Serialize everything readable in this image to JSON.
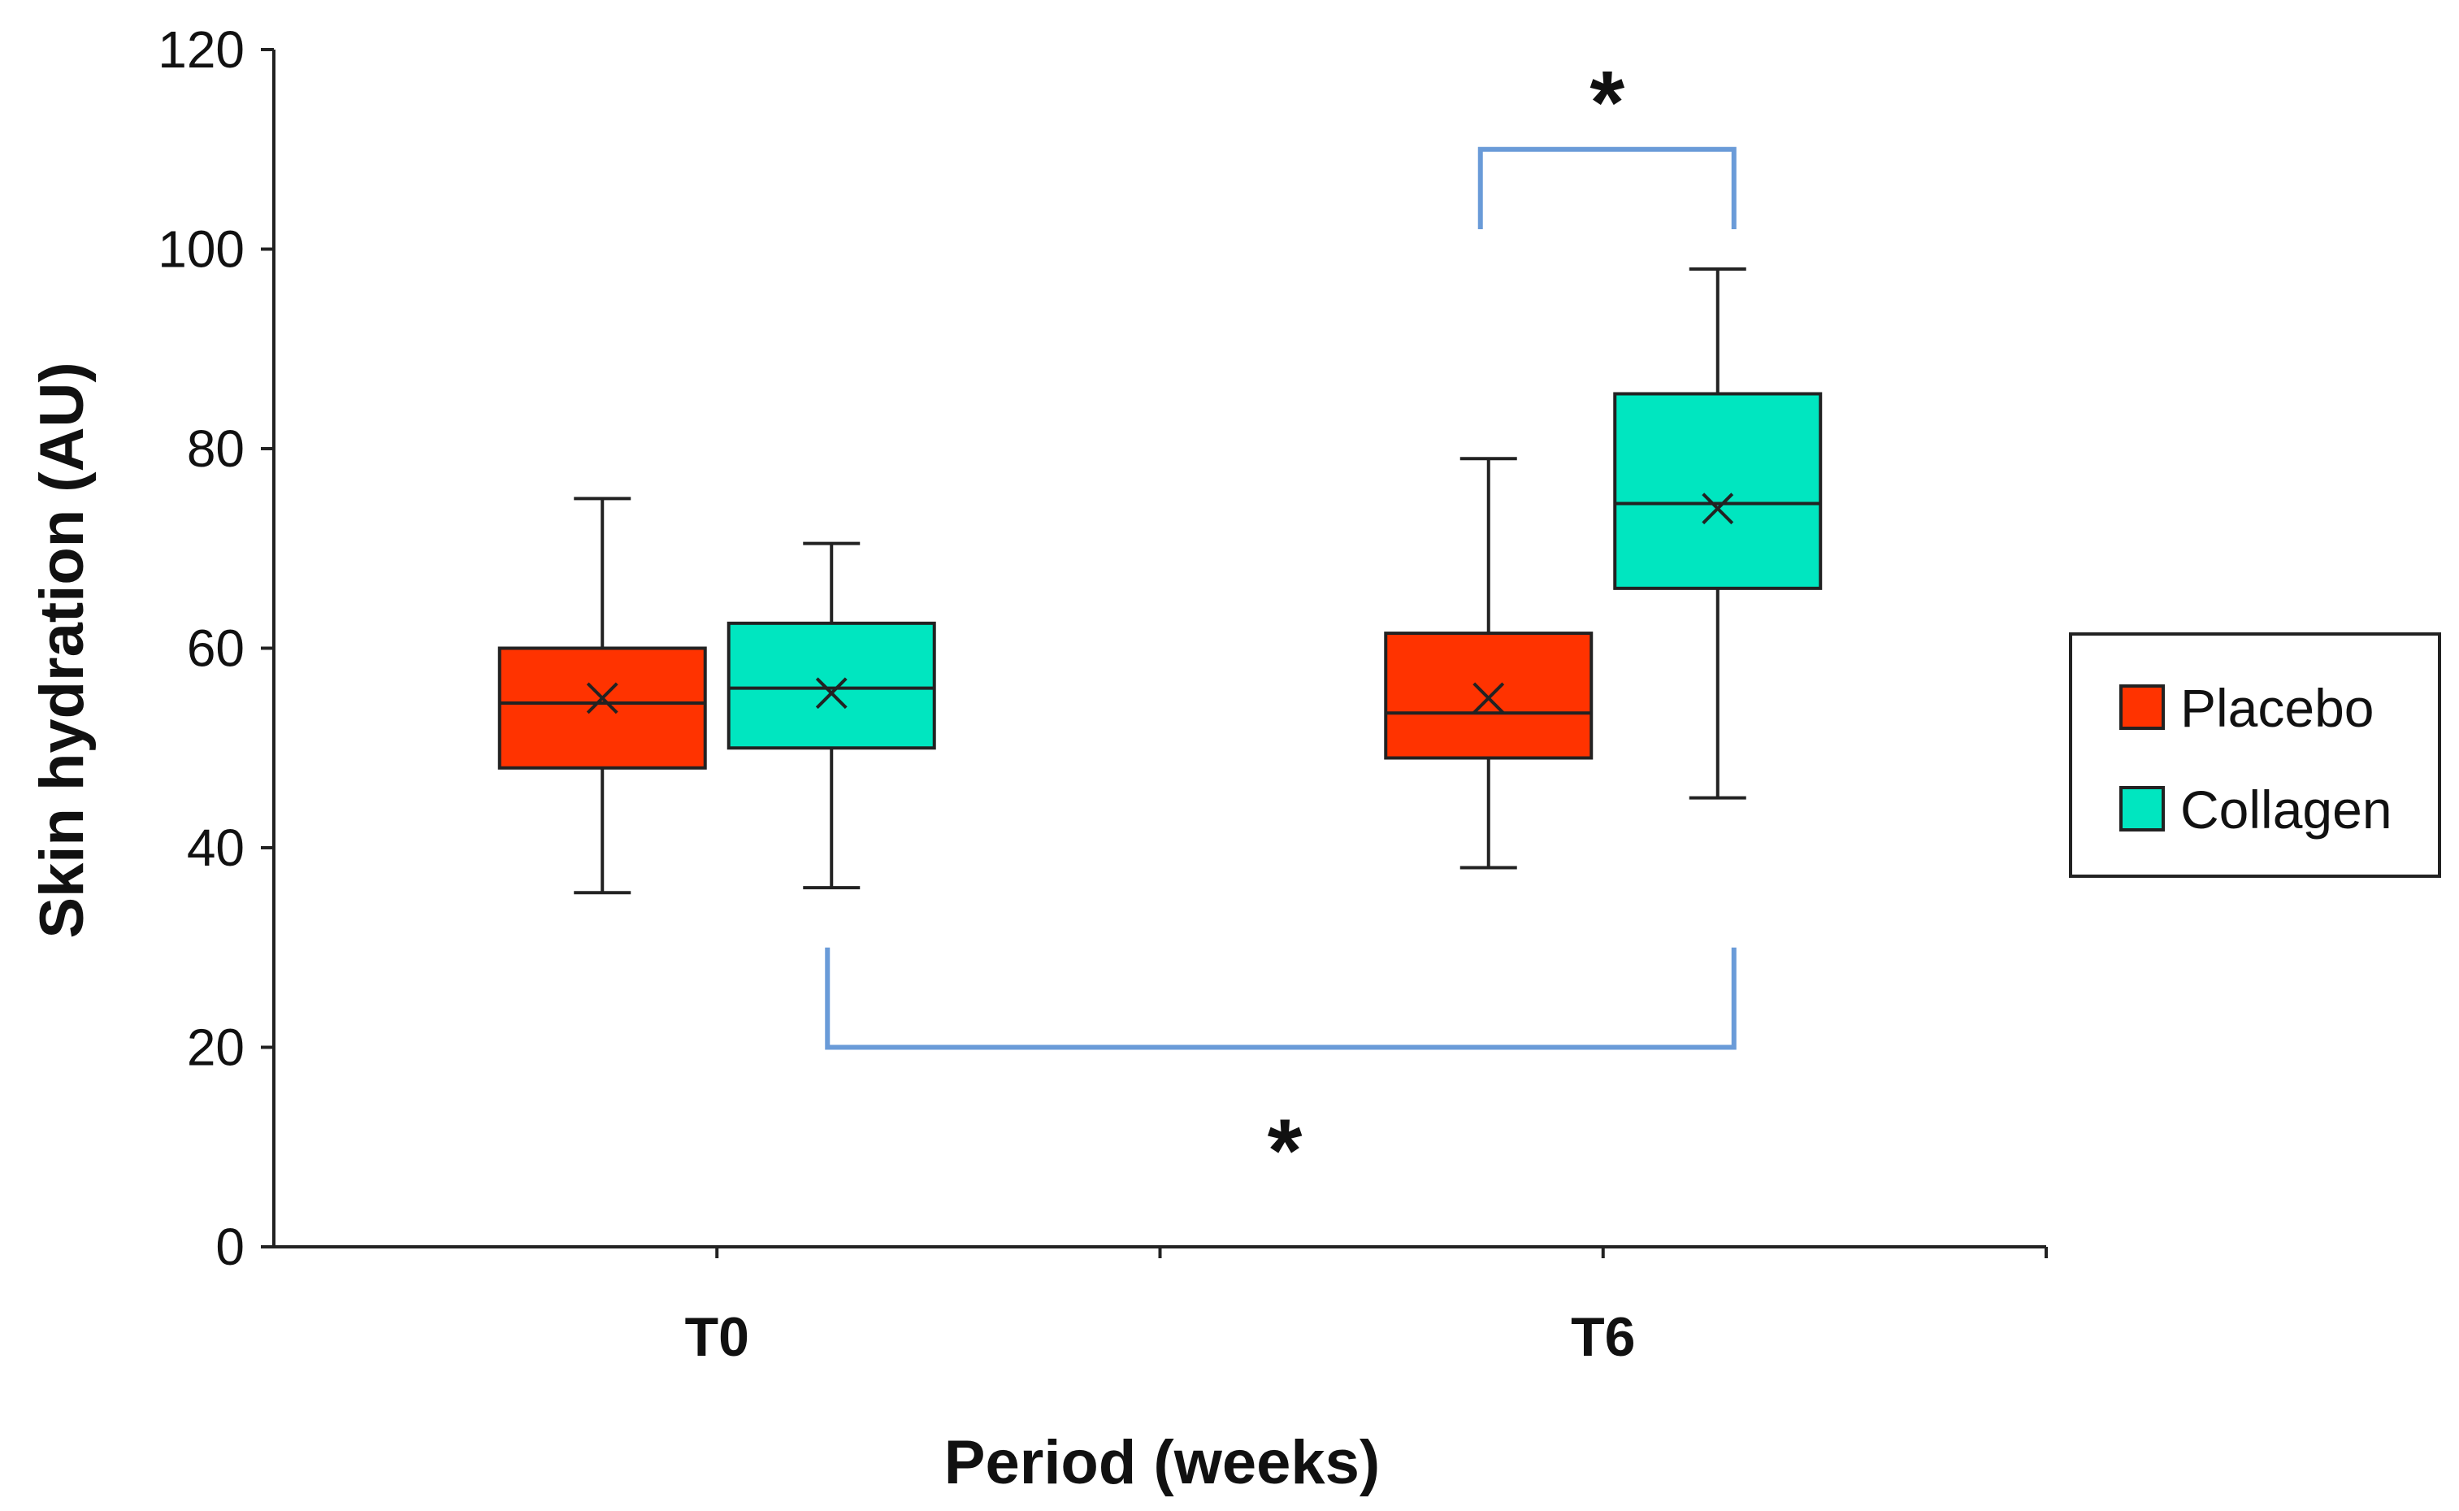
{
  "chart_data": {
    "type": "box",
    "title": "",
    "xlabel": "Period (weeks)",
    "ylabel": "Skin hydration (AU)",
    "ylim": [
      0,
      120
    ],
    "yticks": [
      "0",
      "20",
      "40",
      "60",
      "80",
      "100",
      "120"
    ],
    "categories": [
      "T0",
      "T6"
    ],
    "grid": false,
    "legend_position": "right",
    "series": [
      {
        "name": "Placebo",
        "color": "#ff3300",
        "boxes": [
          {
            "min": 35.5,
            "q1": 48,
            "median": 54.5,
            "q3": 60,
            "max": 75,
            "mean": 55
          },
          {
            "min": 38,
            "q1": 49,
            "median": 53.5,
            "q3": 61.5,
            "max": 79,
            "mean": 55
          }
        ]
      },
      {
        "name": "Collagen",
        "color": "#00e6c0",
        "boxes": [
          {
            "min": 36,
            "q1": 50,
            "median": 56,
            "q3": 62.5,
            "max": 70.5,
            "mean": 55.5
          },
          {
            "min": 45,
            "q1": 66,
            "median": 74.5,
            "q3": 85.5,
            "max": 98,
            "mean": 74
          }
        ]
      }
    ],
    "annotations": [
      {
        "label": "*",
        "between": "Placebo T6 vs Collagen T6",
        "bracket_y": 110
      },
      {
        "label": "*",
        "between": "Collagen T0 vs Collagen T6",
        "bracket_y": 20
      }
    ]
  }
}
